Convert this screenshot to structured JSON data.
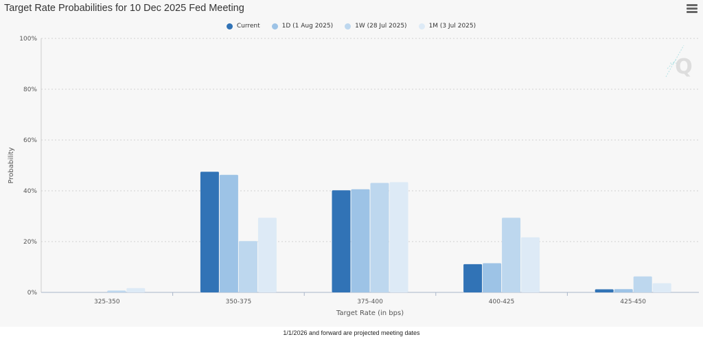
{
  "header": {
    "title": "Target Rate Probabilities for 10 Dec 2025 Fed Meeting",
    "menu_icon": "hamburger-menu-icon"
  },
  "watermark": {
    "icon": "quikstrike-q-logo-icon",
    "text": "Q"
  },
  "footnote": "1/1/2026 and forward are projected meeting dates",
  "colors": {
    "current": "#3173b6",
    "1d": "#9dc3e6",
    "1w": "#bdd7ee",
    "1m": "#ddeaf6",
    "panel": "#f7f7f7",
    "grid": "#d0d0d0"
  },
  "chart_data": {
    "type": "bar",
    "xlabel": "Target Rate (in bps)",
    "ylabel": "Probability",
    "ylim": [
      0,
      100
    ],
    "yticks": [
      "0%",
      "20%",
      "40%",
      "60%",
      "80%",
      "100%"
    ],
    "ytick_values": [
      0,
      20,
      40,
      60,
      80,
      100
    ],
    "grid": true,
    "legend_position": "top-center",
    "categories": [
      "325-350",
      "350-375",
      "375-400",
      "400-425",
      "425-450"
    ],
    "series": [
      {
        "name": "Current",
        "color": "#3173b6",
        "values": [
          0,
          47.5,
          40.2,
          11.1,
          1.2
        ]
      },
      {
        "name": "1D (1 Aug 2025)",
        "color": "#9dc3e6",
        "values": [
          0,
          46.3,
          40.6,
          11.5,
          1.3
        ]
      },
      {
        "name": "1W (28 Jul 2025)",
        "color": "#bdd7ee",
        "values": [
          0.7,
          20.2,
          43.1,
          29.4,
          6.3
        ]
      },
      {
        "name": "1M (3 Jul 2025)",
        "color": "#ddeaf6",
        "values": [
          1.7,
          29.4,
          43.4,
          21.7,
          3.6
        ]
      }
    ]
  }
}
